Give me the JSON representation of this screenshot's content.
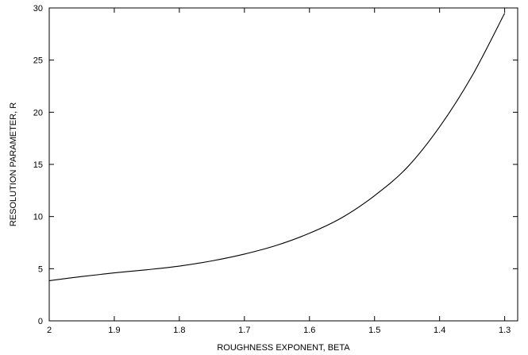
{
  "chart_data": {
    "type": "line",
    "xlabel": "ROUGHNESS EXPONENT, BETA",
    "ylabel": "RESOLUTION PARAMETER, R",
    "xlim": [
      2.0,
      1.28
    ],
    "ylim": [
      0,
      30
    ],
    "x_reversed": true,
    "xticks": [
      "2",
      "1.9",
      "1.8",
      "1.7",
      "1.6",
      "1.5",
      "1.4",
      "1.3"
    ],
    "yticks": [
      "0",
      "5",
      "10",
      "15",
      "20",
      "25",
      "30"
    ],
    "grid": false,
    "series": [
      {
        "x": [
          2.0,
          1.95,
          1.9,
          1.85,
          1.8,
          1.75,
          1.7,
          1.65,
          1.6,
          1.55,
          1.5,
          1.45,
          1.4,
          1.35,
          1.3
        ],
        "y": [
          3.85,
          4.25,
          4.6,
          4.9,
          5.25,
          5.75,
          6.4,
          7.25,
          8.4,
          9.9,
          12.0,
          14.7,
          18.6,
          23.5,
          29.5
        ]
      }
    ]
  }
}
